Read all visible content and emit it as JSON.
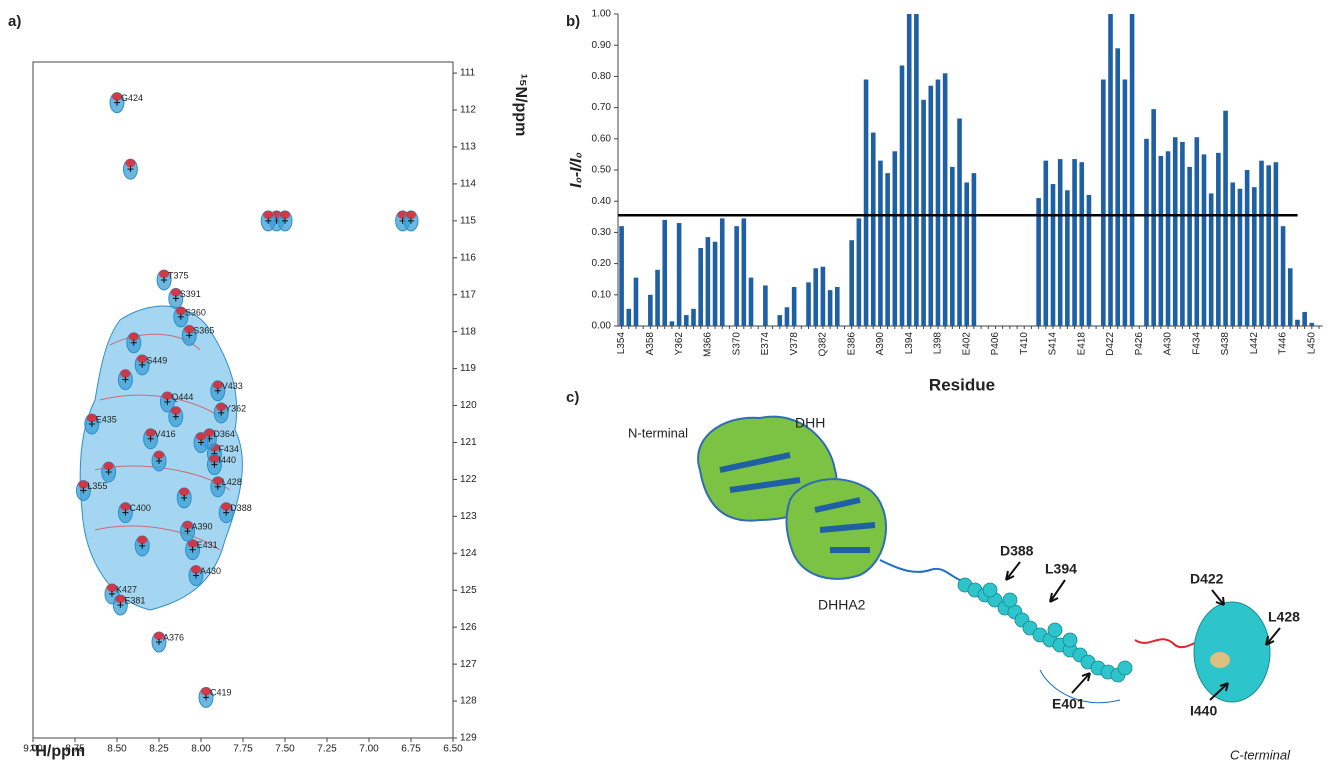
{
  "panel_labels": [
    "a)",
    "b)",
    "c)"
  ],
  "chart_data": [
    {
      "type": "scatter",
      "x_label": "¹H/ppm",
      "y_label": "¹⁵N/ppm",
      "xlim": [
        9.0,
        6.5
      ],
      "xticks": [
        {
          "value": 9.0,
          "label": "9.00"
        },
        {
          "value": 8.75,
          "label": "8.75"
        },
        {
          "value": 8.5,
          "label": "8.50"
        },
        {
          "value": 8.25,
          "label": "8.25"
        },
        {
          "value": 8.0,
          "label": "8.00"
        },
        {
          "value": 7.75,
          "label": "7.75"
        },
        {
          "value": 7.5,
          "label": "7.50"
        },
        {
          "value": 7.25,
          "label": "7.25"
        },
        {
          "value": 7.0,
          "label": "7.00"
        },
        {
          "value": 6.75,
          "label": "6.75"
        },
        {
          "value": 6.5,
          "label": "6.50"
        }
      ],
      "ylim": [
        110.7,
        129
      ],
      "yticks": [
        111,
        112,
        113,
        114,
        115,
        116,
        117,
        118,
        119,
        120,
        121,
        122,
        123,
        124,
        125,
        126,
        127,
        128,
        129
      ],
      "color": "#3a9fd6",
      "peak_color": "#e3242b",
      "x": [
        8.5,
        8.42,
        7.55,
        7.6,
        7.5,
        6.8,
        6.75,
        8.22,
        8.15,
        8.12,
        8.07,
        7.9,
        8.65,
        8.7,
        7.85,
        8.03,
        8.53,
        8.48,
        8.25,
        7.97,
        7.92,
        7.92,
        8.2,
        7.9,
        7.95,
        7.88,
        8.35,
        8.05,
        8.08,
        8.45,
        8.3,
        8.4,
        8.55,
        8.25,
        8.1,
        8.0,
        8.35,
        8.45,
        8.15
      ],
      "y": [
        111.8,
        113.6,
        115.0,
        115.0,
        115.0,
        115.0,
        115.0,
        116.6,
        117.1,
        117.6,
        118.1,
        119.6,
        120.5,
        122.3,
        122.9,
        124.6,
        125.1,
        125.4,
        126.4,
        127.9,
        121.3,
        121.6,
        119.9,
        122.2,
        120.9,
        120.2,
        118.9,
        123.9,
        123.4,
        122.9,
        120.9,
        118.3,
        121.8,
        121.5,
        122.5,
        121.0,
        123.8,
        119.3,
        120.3
      ],
      "labels": [
        "G424",
        null,
        null,
        null,
        null,
        null,
        null,
        "T375",
        "S391",
        "S360",
        "S365",
        "V433",
        "E435",
        "L355",
        "D388",
        "A430",
        "K427",
        "E381",
        "A376",
        "C419",
        "F434",
        "I440",
        "Q444",
        "L428",
        "D364",
        "Y362",
        "S449",
        "E431",
        "A390",
        "C400",
        "V416",
        null,
        null,
        null,
        null,
        null,
        null,
        null,
        null
      ]
    },
    {
      "type": "bar",
      "x_label": "Residue",
      "y_label": "I₀-I/I₀",
      "color": "#1f5fa3",
      "threshold": 0.355,
      "ylim": [
        0,
        1
      ],
      "yticks": [
        {
          "value": 0,
          "label": "0.00"
        },
        {
          "value": 0.1,
          "label": "0.10"
        },
        {
          "value": 0.2,
          "label": "0.20"
        },
        {
          "value": 0.3,
          "label": "0.30"
        },
        {
          "value": 0.4,
          "label": "0.40"
        },
        {
          "value": 0.5,
          "label": "0.50"
        },
        {
          "value": 0.6,
          "label": "0.60"
        },
        {
          "value": 0.7,
          "label": "0.70"
        },
        {
          "value": 0.8,
          "label": "0.80"
        },
        {
          "value": 0.9,
          "label": "0.90"
        },
        {
          "value": 1,
          "label": "1.00"
        }
      ],
      "categories": [
        "L354",
        null,
        null,
        null,
        "A358",
        null,
        null,
        null,
        "Y362",
        null,
        null,
        null,
        "M366",
        null,
        null,
        null,
        "S370",
        null,
        null,
        null,
        "E374",
        null,
        null,
        null,
        "V378",
        null,
        null,
        null,
        "Q382",
        null,
        null,
        null,
        "E386",
        null,
        null,
        null,
        "A390",
        null,
        null,
        null,
        "L394",
        null,
        null,
        null,
        "L398",
        null,
        null,
        null,
        "E402",
        null,
        null,
        null,
        "P406",
        null,
        null,
        null,
        "T410",
        null,
        null,
        null,
        "S414",
        null,
        null,
        null,
        "E418",
        null,
        null,
        null,
        "D422",
        null,
        null,
        null,
        "P426",
        null,
        null,
        null,
        "A430",
        null,
        null,
        null,
        "F434",
        null,
        null,
        null,
        "S438",
        null,
        null,
        null,
        "L442",
        null,
        null,
        null,
        "T446",
        null,
        null,
        null,
        "L450",
        null
      ],
      "values": [
        0.32,
        0.055,
        0.155,
        null,
        0.1,
        0.18,
        0.34,
        0.015,
        0.33,
        0.035,
        0.055,
        0.25,
        0.285,
        0.27,
        0.345,
        null,
        0.32,
        0.345,
        0.155,
        null,
        0.13,
        null,
        0.035,
        0.06,
        0.125,
        null,
        0.14,
        0.185,
        0.19,
        0.115,
        0.125,
        null,
        0.275,
        0.345,
        0.79,
        0.62,
        0.53,
        0.49,
        0.56,
        0.835,
        1.0,
        1.0,
        0.725,
        0.77,
        0.79,
        0.81,
        0.51,
        0.665,
        0.46,
        0.49,
        null,
        null,
        null,
        null,
        null,
        null,
        null,
        null,
        0.41,
        0.53,
        0.455,
        0.535,
        0.435,
        0.535,
        0.525,
        0.42,
        null,
        0.79,
        1.0,
        0.89,
        0.79,
        1.0,
        null,
        0.6,
        0.695,
        0.545,
        0.56,
        0.605,
        0.59,
        0.51,
        0.605,
        0.55,
        0.425,
        0.555,
        0.69,
        0.46,
        0.44,
        0.5,
        0.445,
        0.53,
        0.515,
        0.525,
        0.32,
        0.185,
        0.02,
        0.045,
        0.01,
        null
      ]
    }
  ],
  "structure": {
    "n_terminal": "N-terminal",
    "dhh": "DHH",
    "dhha2": "DHHA2",
    "c_terminal": "C-terminal",
    "residues": [
      "D388",
      "L394",
      "E401",
      "D422",
      "L428",
      "I440"
    ]
  }
}
